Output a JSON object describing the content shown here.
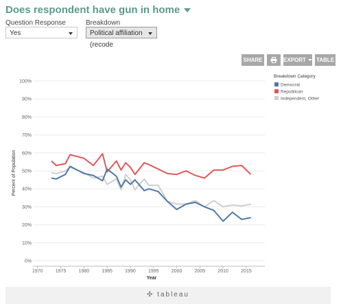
{
  "header": {
    "title": "Does respondent have gun in home"
  },
  "filters": {
    "question_label": "Question Response",
    "question_value": "Yes",
    "breakdown_label": "Breakdown",
    "breakdown_value": "Political affiliation (recode"
  },
  "toolbar": {
    "share_label": "SHARE",
    "print_icon": "printer-icon",
    "export_label": "EXPORT",
    "table_label": "TABLE"
  },
  "footer": {
    "brand": "tableau"
  },
  "chart_data": {
    "type": "line",
    "title": "",
    "xlabel": "Year",
    "ylabel": "Percent of Population",
    "xlim": [
      1969,
      2019
    ],
    "ylim": [
      0,
      100
    ],
    "xticks": [
      1970,
      1975,
      1980,
      1985,
      1990,
      1995,
      2000,
      2005,
      2010,
      2015
    ],
    "yticks": [
      0,
      10,
      20,
      30,
      40,
      50,
      60,
      70,
      80,
      90,
      100
    ],
    "ytick_labels": [
      "0%",
      "10%",
      "20%",
      "30%",
      "40%",
      "50%",
      "60%",
      "70%",
      "80%",
      "90%",
      "100%"
    ],
    "grid": true,
    "legend": {
      "title": "Breakdown Category",
      "position": "top-right"
    },
    "series": [
      {
        "name": "Democrat",
        "color": "#4e79a7",
        "points": [
          [
            1973,
            46
          ],
          [
            1974,
            45.5
          ],
          [
            1976,
            48
          ],
          [
            1977,
            52.5
          ],
          [
            1980,
            48.5
          ],
          [
            1982,
            47.5
          ],
          [
            1984,
            44.5
          ],
          [
            1985,
            51
          ],
          [
            1987,
            47
          ],
          [
            1988,
            41
          ],
          [
            1989,
            45
          ],
          [
            1990,
            42.5
          ],
          [
            1991,
            45
          ],
          [
            1993,
            39
          ],
          [
            1994,
            40
          ],
          [
            1996,
            38.5
          ],
          [
            1998,
            33
          ],
          [
            2000,
            28.5
          ],
          [
            2002,
            31.5
          ],
          [
            2004,
            32.5
          ],
          [
            2006,
            30
          ],
          [
            2008,
            28
          ],
          [
            2010,
            22
          ],
          [
            2012,
            27
          ],
          [
            2014,
            23
          ],
          [
            2016,
            24
          ]
        ]
      },
      {
        "name": "Republican",
        "color": "#e15759",
        "points": [
          [
            1973,
            55.5
          ],
          [
            1974,
            53
          ],
          [
            1976,
            54
          ],
          [
            1977,
            59
          ],
          [
            1980,
            57
          ],
          [
            1982,
            53
          ],
          [
            1984,
            59.5
          ],
          [
            1985,
            49.5
          ],
          [
            1987,
            55.5
          ],
          [
            1988,
            50.5
          ],
          [
            1989,
            54.5
          ],
          [
            1990,
            52
          ],
          [
            1991,
            48
          ],
          [
            1993,
            54.5
          ],
          [
            1994,
            53.5
          ],
          [
            1996,
            51
          ],
          [
            1998,
            48.5
          ],
          [
            2000,
            48
          ],
          [
            2002,
            50
          ],
          [
            2004,
            47.5
          ],
          [
            2006,
            46
          ],
          [
            2008,
            50.5
          ],
          [
            2010,
            50.5
          ],
          [
            2012,
            52.5
          ],
          [
            2014,
            53
          ],
          [
            2016,
            48
          ]
        ]
      },
      {
        "name": "Independent, Other",
        "color": "#cfcfcf",
        "points": [
          [
            1973,
            49
          ],
          [
            1974,
            48.5
          ],
          [
            1976,
            50
          ],
          [
            1977,
            52
          ],
          [
            1980,
            49
          ],
          [
            1982,
            46
          ],
          [
            1984,
            47
          ],
          [
            1985,
            42.5
          ],
          [
            1987,
            45.5
          ],
          [
            1988,
            39.5
          ],
          [
            1989,
            48
          ],
          [
            1990,
            45
          ],
          [
            1991,
            39.5
          ],
          [
            1993,
            45.5
          ],
          [
            1994,
            42
          ],
          [
            1996,
            42
          ],
          [
            1998,
            33
          ],
          [
            2000,
            31.5
          ],
          [
            2002,
            31.5
          ],
          [
            2004,
            33.5
          ],
          [
            2006,
            30
          ],
          [
            2008,
            33.5
          ],
          [
            2010,
            30
          ],
          [
            2012,
            31
          ],
          [
            2014,
            30.5
          ],
          [
            2016,
            31.5
          ]
        ]
      }
    ]
  }
}
